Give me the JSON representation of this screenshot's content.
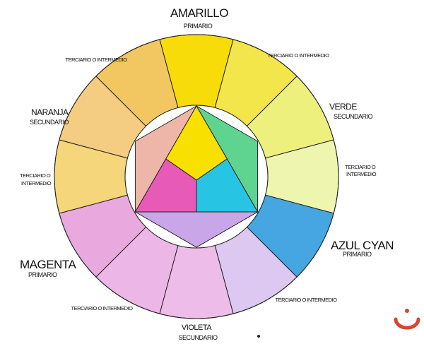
{
  "wheel": {
    "outer_ring": [
      {
        "name": "amarillo",
        "color": "#f7dc0a"
      },
      {
        "name": "terciario-amarillo-verde",
        "color": "#f3e64a"
      },
      {
        "name": "verde",
        "color": "#eef07e"
      },
      {
        "name": "terciario-verde-cyan",
        "color": "#eef5ae"
      },
      {
        "name": "azul-cyan",
        "color": "#45a6e2"
      },
      {
        "name": "terciario-cyan-violeta",
        "color": "#dcc8f0"
      },
      {
        "name": "violeta",
        "color": "#eebce8"
      },
      {
        "name": "terciario-violeta-magenta",
        "color": "#ecb6e6"
      },
      {
        "name": "magenta",
        "color": "#e9a8de"
      },
      {
        "name": "terciario-magenta-naranja",
        "color": "#f6d67a"
      },
      {
        "name": "naranja",
        "color": "#f4cc82"
      },
      {
        "name": "terciario-naranja-amarillo",
        "color": "#f2c660"
      }
    ],
    "inner": {
      "yellow": "#f8e000",
      "magenta": "#e85ab8",
      "cyan": "#28c4e4",
      "orange": "#eeb6a8",
      "green": "#5ed490",
      "violet": "#c8a6e8"
    }
  },
  "labels": {
    "amarillo": {
      "name": "AMARILLO",
      "type": "PRIMARIO"
    },
    "verde": {
      "name": "VERDE",
      "type": "SECUNDARIO"
    },
    "azul_cyan": {
      "name": "AZUL CYAN",
      "type": "PRIMARIO"
    },
    "violeta": {
      "name": "VIOLETA",
      "type": "SECUNDARIO"
    },
    "magenta": {
      "name": "MAGENTA",
      "type": "PRIMARIO"
    },
    "naranja": {
      "name": "NARANJA",
      "type": "SECUNDARIO"
    },
    "tertiary_top_right": "TERCIARIO O INTERMEDIO",
    "tertiary_right_1": "TERCIARIO O",
    "tertiary_right_2": "INTERMEDIO",
    "tertiary_bottom_right": "TERCIARIO O INTERMEDIO",
    "tertiary_bottom_left": "TERCIARIO O INTERMEDIO",
    "tertiary_left_1": "TERCIARIO O",
    "tertiary_left_2": "INTERMEDIO",
    "tertiary_top_left": "TERCIARIO O INTERMEDIO"
  },
  "logo": {
    "icon": "smile-logo-icon",
    "color": "#d9442a"
  }
}
